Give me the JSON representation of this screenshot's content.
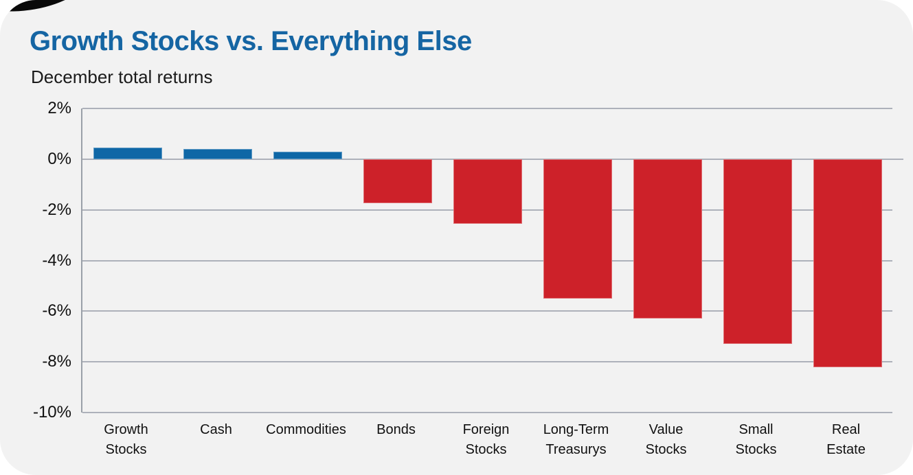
{
  "header": {
    "title": "Growth Stocks vs. Everything Else",
    "subtitle": "December total returns"
  },
  "colors": {
    "positive_bar": "#0f67a6",
    "negative_bar": "#cd2129",
    "title_text": "#1565a3",
    "card_background": "#f2f2f2",
    "page_background": "#ffffff",
    "gridline": "#adb1ba",
    "axis_line": "#9aa0a8",
    "corner_accent": "#0a0a0a"
  },
  "chart_data": {
    "type": "bar",
    "title": "Growth Stocks vs. Everything Else",
    "subtitle": "December total returns",
    "categories": [
      "Growth\nStocks",
      "Cash",
      "Commodities",
      "Bonds",
      "Foreign\nStocks",
      "Long-Term\nTreasurys",
      "Value\nStocks",
      "Small\nStocks",
      "Real\nEstate"
    ],
    "values": [
      0.45,
      0.4,
      0.3,
      -1.75,
      -2.55,
      -5.5,
      -6.3,
      -7.3,
      -8.2
    ],
    "unit": "%",
    "xlabel": "",
    "ylabel": "December total returns (%)",
    "ylim": [
      -10,
      2
    ],
    "yticks": [
      2,
      0,
      -2,
      -4,
      -6,
      -8,
      -10
    ],
    "ytick_labels": [
      "2%",
      "0%",
      "-2%",
      "-4%",
      "-6%",
      "-8%",
      "-10%"
    ],
    "grid": true,
    "legend": false,
    "positive_color": "#0f67a6",
    "negative_color": "#cd2129"
  }
}
